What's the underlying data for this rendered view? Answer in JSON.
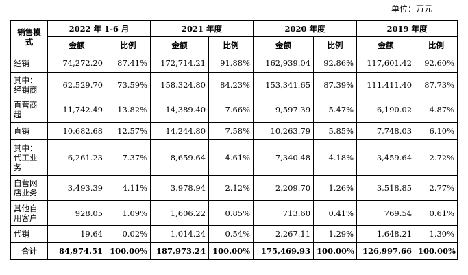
{
  "unit_label": "单位：万元",
  "header": {
    "mode_label": "销售模式",
    "periods": [
      "2022 年 1-6 月",
      "2021 年度",
      "2020 年度",
      "2019 年度"
    ],
    "amount_label": "金额",
    "ratio_label": "比例"
  },
  "rows": [
    {
      "label": "经销",
      "cells": [
        "74,272.20",
        "87.41%",
        "172,714.21",
        "91.88%",
        "162,939.04",
        "92.86%",
        "117,601.42",
        "92.60%"
      ]
    },
    {
      "label": "其中：经销商",
      "cells": [
        "62,529.70",
        "73.59%",
        "158,324.80",
        "84.23%",
        "153,341.65",
        "87.39%",
        "111,411.40",
        "87.73%"
      ]
    },
    {
      "label": "直营商超",
      "cells": [
        "11,742.49",
        "13.82%",
        "14,389.40",
        "7.66%",
        "9,597.39",
        "5.47%",
        "6,190.02",
        "4.87%"
      ]
    },
    {
      "label": "直销",
      "cells": [
        "10,682.68",
        "12.57%",
        "14,244.80",
        "7.58%",
        "10,263.79",
        "5.85%",
        "7,748.03",
        "6.10%"
      ]
    },
    {
      "label": "其中：代工业务",
      "cells": [
        "6,261.23",
        "7.37%",
        "8,659.64",
        "4.61%",
        "7,340.48",
        "4.18%",
        "3,459.64",
        "2.72%"
      ]
    },
    {
      "label": "自营网店业务",
      "cells": [
        "3,493.39",
        "4.11%",
        "3,978.94",
        "2.12%",
        "2,209.70",
        "1.26%",
        "3,518.85",
        "2.77%"
      ]
    },
    {
      "label": "其他自用客户",
      "cells": [
        "928.05",
        "1.09%",
        "1,606.22",
        "0.85%",
        "713.60",
        "0.41%",
        "769.54",
        "0.61%"
      ]
    },
    {
      "label": "代销",
      "cells": [
        "19.64",
        "0.02%",
        "1,014.24",
        "0.54%",
        "2,267.11",
        "1.29%",
        "1,648.21",
        "1.30%"
      ]
    }
  ],
  "total": {
    "label": "合计",
    "cells": [
      "84,974.51",
      "100.00%",
      "187,973.24",
      "100.00%",
      "175,469.93",
      "100.00%",
      "126,997.66",
      "100.00%"
    ]
  }
}
